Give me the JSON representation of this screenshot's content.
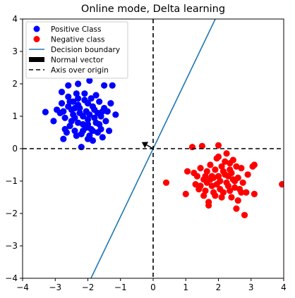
{
  "chart_data": {
    "type": "scatter",
    "title": "Online mode, Delta learning",
    "xlabel": "",
    "ylabel": "",
    "xlim": [
      -4,
      4
    ],
    "ylim": [
      -4,
      4
    ],
    "xticks": [
      -4,
      -3,
      -2,
      -1,
      0,
      1,
      2,
      3,
      4
    ],
    "yticks": [
      -4,
      -3,
      -2,
      -1,
      0,
      1,
      2,
      3,
      4
    ],
    "grid": false,
    "legend_position": "top-left",
    "legend": [
      {
        "label": "Positive Class",
        "kind": "marker",
        "color": "#0000ff"
      },
      {
        "label": "Negative class",
        "kind": "marker",
        "color": "#ff0000"
      },
      {
        "label": "Decision boundary",
        "kind": "line",
        "color": "#1f77b4"
      },
      {
        "label": "Normal vector",
        "kind": "patch",
        "color": "#000000"
      },
      {
        "label": "Axis over origin",
        "kind": "dashed",
        "color": "#000000"
      }
    ],
    "series": [
      {
        "name": "Positive Class",
        "color": "#0000ff",
        "points": [
          [
            -3.3,
            1.13
          ],
          [
            -3.05,
            0.85
          ],
          [
            -2.95,
            1.2
          ],
          [
            -2.85,
            1.1
          ],
          [
            -2.8,
            1.4
          ],
          [
            -2.75,
            1.15
          ],
          [
            -2.7,
            0.6
          ],
          [
            -2.65,
            0.5
          ],
          [
            -2.75,
            0.3
          ],
          [
            -2.6,
            1.6
          ],
          [
            -2.55,
            1.45
          ],
          [
            -2.5,
            1.2
          ],
          [
            -2.45,
            1.05
          ],
          [
            -2.4,
            0.95
          ],
          [
            -2.35,
            1.7
          ],
          [
            -2.3,
            1.35
          ],
          [
            -2.25,
            1.25
          ],
          [
            -2.2,
            0.45
          ],
          [
            -2.15,
            0.75
          ],
          [
            -2.1,
            1.5
          ],
          [
            -2.05,
            1.15
          ],
          [
            -2.0,
            0.9
          ],
          [
            -1.95,
            1.05
          ],
          [
            -1.9,
            0.6
          ],
          [
            -1.85,
            1.3
          ],
          [
            -1.8,
            1.2
          ],
          [
            -1.75,
            0.8
          ],
          [
            -1.7,
            0.5
          ],
          [
            -1.65,
            1.45
          ],
          [
            -1.6,
            1.0
          ],
          [
            -1.55,
            0.35
          ],
          [
            -1.5,
            1.25
          ],
          [
            -1.45,
            0.85
          ],
          [
            -1.4,
            1.15
          ],
          [
            -1.35,
            0.55
          ],
          [
            -1.3,
            1.4
          ],
          [
            -1.25,
            1.95
          ],
          [
            -1.15,
            1.05
          ],
          [
            -2.6,
            1.95
          ],
          [
            -2.3,
            2.0
          ],
          [
            -1.95,
            2.1
          ],
          [
            -1.5,
            1.95
          ],
          [
            -2.8,
            1.75
          ],
          [
            -2.1,
            1.7
          ],
          [
            -1.75,
            1.65
          ],
          [
            -2.0,
            0.3
          ],
          [
            -1.85,
            0.25
          ],
          [
            -2.2,
            0.05
          ],
          [
            -2.4,
            0.55
          ],
          [
            -2.55,
            0.7
          ],
          [
            -2.3,
            0.8
          ],
          [
            -2.15,
            1.0
          ],
          [
            -1.95,
            0.4
          ],
          [
            -1.7,
            1.1
          ],
          [
            -2.05,
            0.65
          ],
          [
            -2.5,
            0.85
          ],
          [
            -1.6,
            0.6
          ],
          [
            -2.35,
            0.4
          ],
          [
            -1.8,
            0.95
          ],
          [
            -2.25,
            1.1
          ],
          [
            -2.0,
            1.4
          ],
          [
            -2.6,
            1.3
          ],
          [
            -1.9,
            1.55
          ],
          [
            -2.45,
            1.45
          ],
          [
            -1.55,
            1.15
          ],
          [
            -2.15,
            0.55
          ],
          [
            -2.7,
            0.95
          ],
          [
            -1.65,
            0.75
          ],
          [
            -2.3,
            1.55
          ],
          [
            -2.0,
            0.75
          ],
          [
            -1.85,
            0.55
          ],
          [
            -2.4,
            1.25
          ]
        ]
      },
      {
        "name": "Negative class",
        "color": "#ff0000",
        "points": [
          [
            0.4,
            -1.05
          ],
          [
            1.0,
            -1.4
          ],
          [
            1.05,
            -0.7
          ],
          [
            1.2,
            0.05
          ],
          [
            1.25,
            -0.75
          ],
          [
            1.3,
            -1.1
          ],
          [
            1.35,
            -0.85
          ],
          [
            1.4,
            -1.25
          ],
          [
            1.45,
            -0.6
          ],
          [
            1.5,
            0.08
          ],
          [
            1.55,
            -0.95
          ],
          [
            1.6,
            -1.3
          ],
          [
            1.65,
            -0.7
          ],
          [
            1.7,
            -1.65
          ],
          [
            1.75,
            -0.5
          ],
          [
            1.8,
            -1.15
          ],
          [
            1.85,
            -0.9
          ],
          [
            1.9,
            -1.45
          ],
          [
            1.95,
            -0.3
          ],
          [
            2.0,
            0.1
          ],
          [
            2.05,
            -1.0
          ],
          [
            2.1,
            -0.55
          ],
          [
            2.15,
            -1.35
          ],
          [
            2.2,
            -0.8
          ],
          [
            2.25,
            -0.15
          ],
          [
            2.3,
            -1.15
          ],
          [
            2.35,
            -0.65
          ],
          [
            2.4,
            -1.5
          ],
          [
            2.45,
            -0.35
          ],
          [
            2.5,
            -1.0
          ],
          [
            2.55,
            -1.85
          ],
          [
            2.6,
            -0.9
          ],
          [
            2.65,
            -1.25
          ],
          [
            2.7,
            -0.6
          ],
          [
            2.75,
            -1.05
          ],
          [
            2.8,
            -2.05
          ],
          [
            2.85,
            -1.35
          ],
          [
            2.9,
            -0.8
          ],
          [
            3.05,
            -0.55
          ],
          [
            3.1,
            -1.4
          ],
          [
            3.1,
            -0.5
          ],
          [
            3.95,
            -1.1
          ],
          [
            1.55,
            -1.45
          ],
          [
            1.7,
            -1.75
          ],
          [
            1.9,
            -0.65
          ],
          [
            2.0,
            -0.25
          ],
          [
            2.2,
            -0.4
          ],
          [
            2.35,
            -1.3
          ],
          [
            2.45,
            -0.95
          ],
          [
            2.6,
            -1.6
          ],
          [
            1.8,
            -0.85
          ],
          [
            2.05,
            -1.25
          ],
          [
            2.3,
            -0.85
          ],
          [
            1.95,
            -1.1
          ],
          [
            2.15,
            -0.7
          ],
          [
            1.65,
            -1.05
          ],
          [
            2.5,
            -1.2
          ],
          [
            2.4,
            -0.75
          ],
          [
            1.85,
            -1.35
          ],
          [
            2.25,
            -1.05
          ],
          [
            2.0,
            -0.85
          ],
          [
            1.75,
            -0.95
          ],
          [
            2.55,
            -0.55
          ],
          [
            2.1,
            -1.5
          ],
          [
            1.6,
            -0.85
          ],
          [
            2.7,
            -1.35
          ],
          [
            2.35,
            -0.45
          ],
          [
            1.45,
            -1.15
          ]
        ]
      }
    ],
    "decision_boundary": {
      "slope": 2.1,
      "intercept": 0
    },
    "normal_vector": {
      "from": [
        0,
        0
      ],
      "to": [
        -0.35,
        0.2
      ]
    },
    "origin_axes": {
      "x": 0,
      "y": 0
    }
  }
}
